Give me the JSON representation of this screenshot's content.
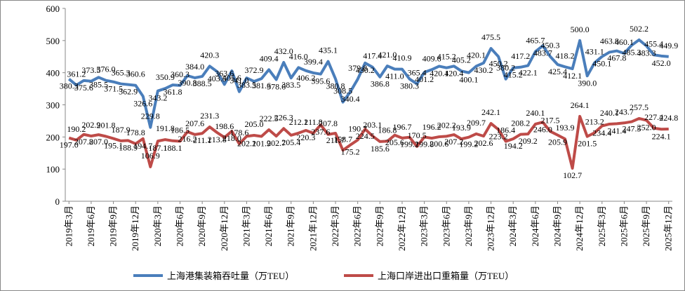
{
  "chart_data": {
    "type": "line",
    "categories": [
      "2019年3月",
      null,
      null,
      "2019年6月",
      null,
      null,
      "2019年9月",
      null,
      null,
      "2019年12月",
      null,
      null,
      "2020年3月",
      null,
      null,
      "2020年6月",
      null,
      null,
      "2020年9月",
      null,
      null,
      "2020年12月",
      null,
      null,
      "2021年3月",
      null,
      null,
      "2021年6月",
      null,
      null,
      "2021年9月",
      null,
      null,
      "2021年12月",
      null,
      null,
      "2022年3月",
      null,
      null,
      "2022年6月",
      null,
      null,
      "2022年9月",
      null,
      null,
      "2022年12月",
      null,
      null,
      "2023年3月",
      null,
      null,
      "2023年6月",
      null,
      null,
      "2023年9月",
      null,
      null,
      "2023年12月",
      null,
      null,
      "2024年3月",
      null,
      null,
      "2024年6月",
      null,
      null,
      "2024年9月",
      null,
      null,
      "2024年12月",
      null,
      null,
      "2025年3月",
      null,
      null,
      "2025年6月",
      null,
      null,
      "2025年9月",
      null,
      null,
      "2025年12月"
    ],
    "series": [
      {
        "name": "上海港集装箱吞吐量（万TEU）",
        "color": "#4a7ebb",
        "values": [
          380.3,
          361.2,
          375.6,
          373.5,
          385.5,
          376.0,
          371.5,
          365.3,
          362.9,
          360.6,
          326.6,
          229.8,
          343.2,
          350.9,
          361.8,
          360.3,
          390.8,
          384.0,
          388.5,
          420.3,
          403.5,
          363.6,
          405.6,
          341.0,
          383.5,
          372.9,
          381.6,
          409.4,
          378.6,
          432.0,
          383.5,
          416.0,
          406.2,
          399.4,
          395.6,
          435.1,
          380.8,
          308.5,
          340.4,
          379.8,
          430.2,
          417.4,
          386.8,
          421.0,
          411.0,
          410.9,
          380.3,
          365.4,
          401.2,
          409.6,
          420.1,
          415.2,
          420.4,
          405.2,
          400.1,
          420.1,
          430.2,
          475.5,
          450.2,
          380.2,
          415.2,
          417.2,
          422.1,
          465.7,
          483.7,
          450.3,
          425.4,
          418.2,
          412.1,
          500.0,
          390.0,
          431.1,
          450.1,
          463.8,
          467.8,
          460.1,
          485.3,
          502.2,
          483.3,
          455.4,
          452.0,
          449.9
        ],
        "value_labels": [
          "380.3",
          "361.2",
          "375.6",
          "373.5",
          "385.5",
          "376.0",
          "371.5",
          "365.3",
          "362.9",
          "360.6",
          "326.6",
          "229.8",
          "343.2",
          "350.9",
          "361.8",
          "360.3",
          "390.8",
          "384.0",
          "388.5",
          "420.3",
          "403.5",
          "363.6",
          "405.6",
          "341.0",
          "383.5",
          "372.9",
          "381.6",
          "409.4",
          "378.6",
          "432.0",
          "383.5",
          "416.0",
          "406.2",
          "399.4",
          "395.6",
          "435.1",
          "380.8",
          "308.5",
          "340.4",
          "379.8",
          "430.2",
          "417.4",
          "386.8",
          "421.0",
          "411.0",
          "410.9",
          "380.3",
          "365.4",
          "401.2",
          "409.6",
          "420.1",
          "415.2",
          "420.4",
          "405.2",
          "400.1",
          "420.1",
          "430.2",
          "475.5",
          "450.2",
          "380.2",
          "415.2",
          "417.2",
          "422.1",
          "465.7",
          "483.7",
          "450.3",
          "425.4",
          "418.2",
          "412.1",
          "500.0",
          "390.0",
          "431.1",
          "450.1",
          "463.8",
          "467.8",
          "460.1",
          "485.3",
          "502.2",
          "483.3",
          "455.4",
          "452.0",
          "449.9"
        ]
      },
      {
        "name": "上海口岸进出口重箱量（万TEU）",
        "color": "#be4b48",
        "values": [
          197.0,
          190.2,
          207.8,
          202.9,
          207.0,
          201.8,
          195.1,
          187.9,
          188.9,
          178.8,
          194.7,
          106.9,
          187.1,
          191.8,
          188.1,
          186.5,
          216.2,
          207.6,
          211.1,
          231.3,
          213.8,
          198.6,
          218.0,
          178.6,
          202.1,
          205.0,
          201.9,
          222.5,
          202.7,
          226.3,
          205.4,
          212.1,
          220.3,
          211.8,
          237.6,
          207.8,
          211.7,
          158.7,
          175.2,
          190.7,
          224.5,
          203.1,
          185.6,
          186.8,
          205.6,
          196.7,
          199.2,
          170.5,
          199.8,
          196.2,
          200.6,
          202.2,
          207.2,
          193.9,
          199.2,
          209.7,
          202.6,
          242.1,
          223.2,
          186.4,
          194.2,
          208.2,
          209.2,
          240.1,
          246.0,
          217.5,
          205.9,
          193.9,
          102.7,
          264.1,
          201.5,
          213.2,
          234.4,
          240.1,
          241.4,
          243.7,
          247.5,
          257.5,
          252.0,
          227.4,
          224.1,
          224.8
        ],
        "value_labels": [
          "197.0",
          "190.2",
          "207.8",
          "202.9",
          "207.0",
          "201.8",
          "195.1",
          "187.9",
          "188.9",
          "178.8",
          "194.7",
          "106.9",
          "187.1",
          "191.8",
          "188.1",
          "186.5",
          "216.2",
          "207.6",
          "211.1",
          "231.3",
          "213.8",
          "198.6",
          "218.0",
          "178.6",
          "202.1",
          "205.0",
          "201.9",
          "222.5",
          "202.7",
          "226.3",
          "205.4",
          "212.1",
          "220.3",
          "211.8",
          "237.6",
          "207.8",
          "211.7",
          "158.7",
          "175.2",
          "190.7",
          "224.5",
          "203.1",
          "185.6",
          "186.8",
          "205.6",
          "196.7",
          "199.2",
          "170.5",
          "199.8",
          "196.2",
          "200.6",
          "202.2",
          "207.2",
          "193.9",
          "199.2",
          "209.7",
          "202.6",
          "242.1",
          "223.2",
          "186.4",
          "194.2",
          "208.2",
          "209.2",
          "240.1",
          "246.0",
          "217.5",
          "205.9",
          "193.9",
          "102.7",
          "264.1",
          "201.5",
          "213.2",
          "234.4",
          "240.1",
          "241.4",
          "243.7",
          "247.5",
          "257.5",
          "252.0",
          "227.4",
          "224.1",
          "224.8"
        ]
      }
    ],
    "ylim": [
      0,
      600
    ],
    "yticks": [
      0,
      100,
      200,
      300,
      400,
      500,
      600
    ],
    "grid": false,
    "legend": "bottom"
  }
}
